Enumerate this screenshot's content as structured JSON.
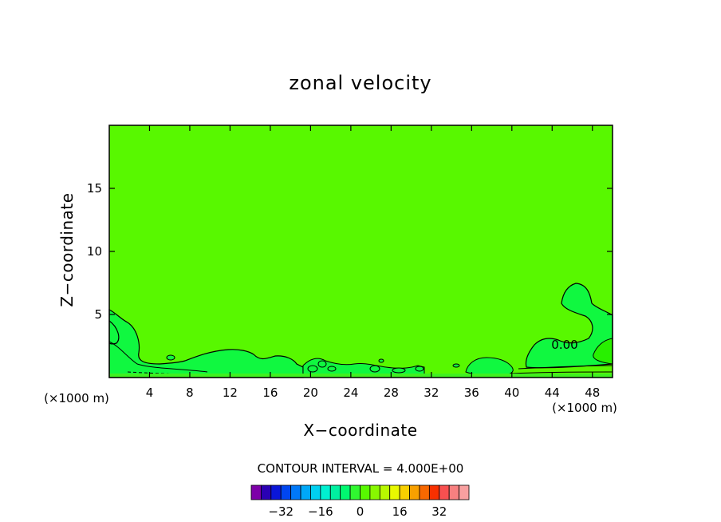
{
  "chart_data": {
    "type": "contour",
    "title": "zonal velocity",
    "xlabel": "X−coordinate",
    "ylabel": "Z−coordinate",
    "x_unit": "(×1000 m)",
    "xlim": [
      0,
      50
    ],
    "ylim": [
      0,
      20
    ],
    "x_ticks": [
      4,
      8,
      12,
      16,
      20,
      24,
      28,
      32,
      36,
      40,
      44,
      48
    ],
    "x_tick_labels": [
      "4",
      "8",
      "12",
      "16",
      "20",
      "24",
      "28",
      "32",
      "36",
      "40",
      "44",
      "48"
    ],
    "y_ticks": [
      5,
      10,
      15
    ],
    "y_tick_labels": [
      "5",
      "10",
      "15"
    ],
    "contour_label": "0.00",
    "contour_interval_text": "CONTOUR INTERVAL = 4.000E+00",
    "contour_interval": 4,
    "fill_value_dominant": 0,
    "colorbar": {
      "levels": [
        -40,
        -36,
        -32,
        -28,
        -24,
        -20,
        -16,
        -12,
        -8,
        -4,
        0,
        4,
        8,
        12,
        16,
        20,
        24,
        28,
        32,
        36,
        40
      ],
      "colors": [
        "#7d00a8",
        "#2a00b4",
        "#0a16d8",
        "#0046f0",
        "#0078f8",
        "#00a8f8",
        "#00d0f0",
        "#00f0d0",
        "#00f0a0",
        "#00f870",
        "#30f830",
        "#58f800",
        "#88f800",
        "#b8f800",
        "#e8f800",
        "#f8d000",
        "#f8a000",
        "#f86800",
        "#f83000",
        "#f85050",
        "#f88080",
        "#f8a0a0"
      ],
      "tick_values": [
        -32,
        -16,
        0,
        16,
        32
      ],
      "tick_labels": [
        "−32",
        "−16",
        "0",
        "16",
        "32"
      ]
    }
  }
}
